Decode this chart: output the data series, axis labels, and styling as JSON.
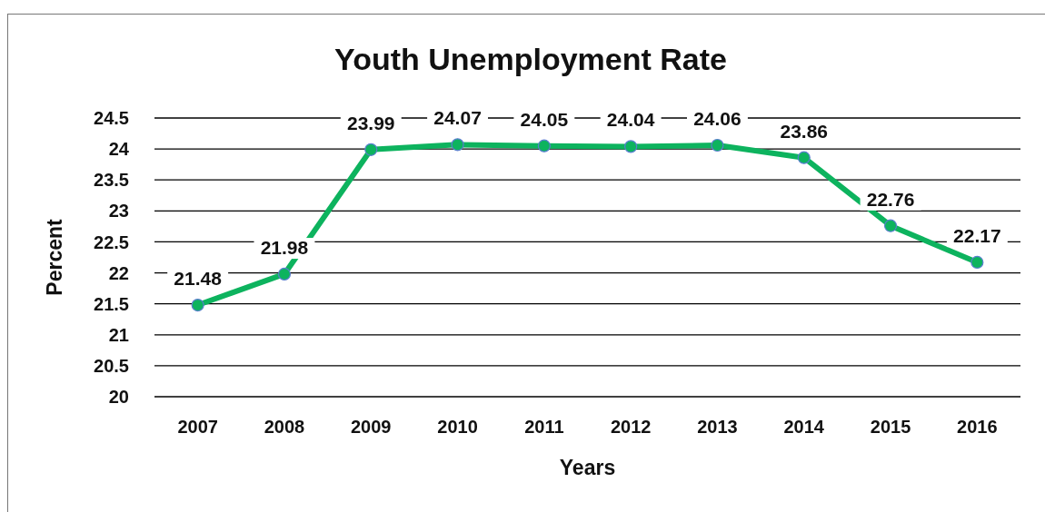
{
  "chart_data": {
    "type": "line",
    "title": "Youth Unemployment Rate",
    "xlabel": "Years",
    "ylabel": "Percent",
    "categories": [
      "2007",
      "2008",
      "2009",
      "2010",
      "2011",
      "2012",
      "2013",
      "2014",
      "2015",
      "2016"
    ],
    "values": [
      21.48,
      21.98,
      23.99,
      24.07,
      24.05,
      24.04,
      24.06,
      23.86,
      22.76,
      22.17
    ],
    "color": "#0db35e",
    "marker": "circle",
    "line_style": "solid",
    "data_labels": true,
    "grid": "y",
    "ylim": [
      20,
      24.5
    ],
    "yticks": [
      20,
      20.5,
      21,
      21.5,
      22,
      22.5,
      23,
      23.5,
      24,
      24.5
    ]
  }
}
